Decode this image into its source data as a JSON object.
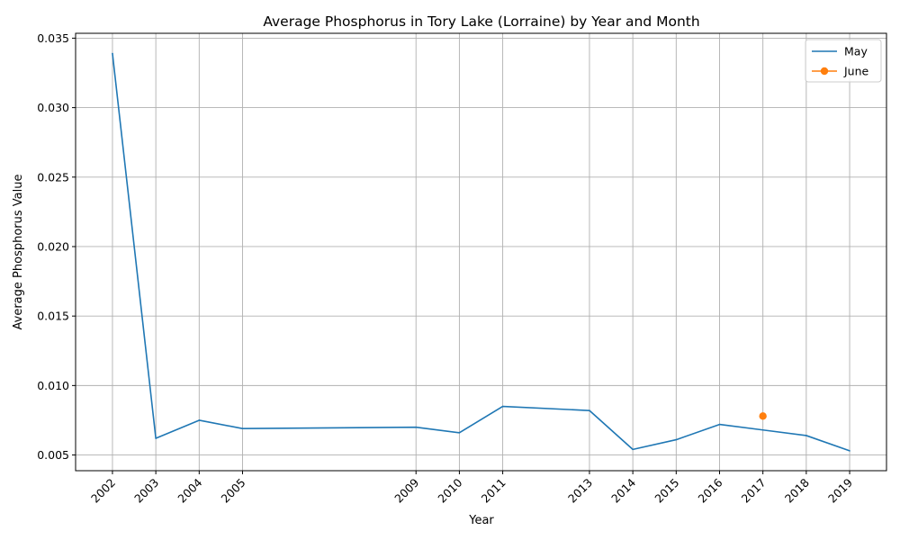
{
  "chart_data": {
    "type": "line",
    "title": "Average Phosphorus in Tory Lake (Lorraine) by Year and Month",
    "xlabel": "Year",
    "ylabel": "Average Phosphorus Value",
    "x_ticks": [
      2002,
      2003,
      2004,
      2005,
      2009,
      2010,
      2011,
      2013,
      2014,
      2015,
      2016,
      2017,
      2018,
      2019
    ],
    "y_ticks": [
      0.005,
      0.01,
      0.015,
      0.02,
      0.025,
      0.03,
      0.035
    ],
    "y_tick_labels": [
      "0.005",
      "0.010",
      "0.015",
      "0.020",
      "0.025",
      "0.030",
      "0.035"
    ],
    "xlim": [
      2001.15,
      2019.85
    ],
    "ylim": [
      0.00387,
      0.03535
    ],
    "grid": true,
    "legend_position": "top-right",
    "series": [
      {
        "name": "May",
        "color": "#1f77b4",
        "marker": false,
        "x": [
          2002,
          2003,
          2004,
          2005,
          2009,
          2010,
          2011,
          2013,
          2014,
          2015,
          2016,
          2017,
          2018,
          2019
        ],
        "y": [
          0.0339,
          0.0062,
          0.0075,
          0.0069,
          0.007,
          0.0066,
          0.0085,
          0.0082,
          0.0054,
          0.0061,
          0.0072,
          0.0068,
          0.0064,
          0.0053
        ]
      },
      {
        "name": "June",
        "color": "#ff7f0e",
        "marker": true,
        "x": [
          2017
        ],
        "y": [
          0.0078
        ]
      }
    ]
  }
}
